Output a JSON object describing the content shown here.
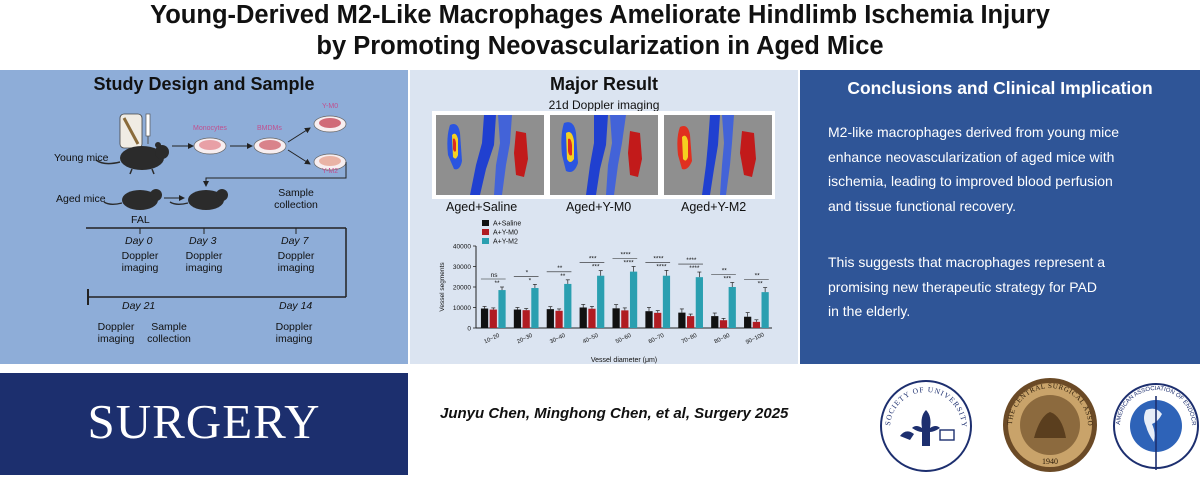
{
  "title": {
    "line1": "Young-Derived M2-Like Macrophages Ameliorate Hindlimb Ischemia Injury",
    "line2": "by Promoting Neovascularization in Aged Mice"
  },
  "design": {
    "heading": "Study Design and Sample",
    "young_mice": "Young mice",
    "monocytes": "Monocytes",
    "bmdms": "BMDMs",
    "y_m0": "Y-M0",
    "y_m2": "Y-M2",
    "aged_mice": "Aged mice",
    "fal": "FAL",
    "sample_collection_top": [
      "Sample",
      "collection"
    ],
    "day0": "Day 0",
    "day3": "Day 3",
    "day7": "Day 7",
    "day14": "Day 14",
    "day21": "Day 21",
    "doppler_imaging": [
      "Doppler",
      "imaging"
    ],
    "sample_collection": [
      "Sample",
      "collection"
    ]
  },
  "result": {
    "heading": "Major Result",
    "doppler_title": "21d Doppler imaging",
    "group_labels": [
      "Aged+Saline",
      "Aged+Y-M0",
      "Aged+Y-M2"
    ]
  },
  "chart_data": {
    "type": "bar",
    "ylabel": "Vessel segments",
    "xlabel": "Vessel diameter (μm)",
    "ylim": [
      0,
      40000
    ],
    "yticks": [
      0,
      10000,
      20000,
      30000,
      40000
    ],
    "categories": [
      "10~20",
      "20~30",
      "30~40",
      "40~50",
      "50~60",
      "60~70",
      "70~80",
      "80~90",
      "90~100"
    ],
    "series": [
      {
        "name": "A+Saline",
        "color": "#111111",
        "values": [
          9500,
          9000,
          9200,
          10000,
          9600,
          8200,
          7500,
          5800,
          5500
        ]
      },
      {
        "name": "A+Y-M0",
        "color": "#b01c22",
        "values": [
          9000,
          8700,
          8400,
          9400,
          8600,
          7400,
          5800,
          3800,
          3000
        ]
      },
      {
        "name": "A+Y-M2",
        "color": "#2a9fb0",
        "values": [
          18500,
          19500,
          21500,
          25500,
          27500,
          25500,
          24800,
          20000,
          17500
        ]
      }
    ],
    "errors": [
      [
        1000,
        1000,
        1200,
        1500,
        1800,
        1800,
        1800,
        1500,
        2000
      ],
      [
        800,
        800,
        900,
        1100,
        1200,
        1100,
        1000,
        900,
        1000
      ],
      [
        1500,
        1800,
        2000,
        2500,
        2500,
        2600,
        2500,
        2200,
        2200
      ]
    ],
    "significance_top": [
      "ns",
      "*",
      "**",
      "***",
      "****",
      "****",
      "****",
      "**",
      "**"
    ],
    "significance_bottom": [
      "**",
      "*",
      "**",
      "***",
      "****",
      "****",
      "****",
      "***",
      "**"
    ],
    "legend_position": "top-left"
  },
  "conclusion": {
    "heading": "Conclusions and Clinical Implication",
    "paragraph1": [
      "M2-like macrophages derived from young mice",
      "enhance neovascularization of aged mice with",
      "ischemia, leading to improved blood perfusion",
      "and tissue functional recovery."
    ],
    "paragraph2": [
      "This suggests that macrophages represent a",
      "promising new therapeutic strategy for PAD",
      "in the elderly."
    ]
  },
  "footer": {
    "journal": "SURGERY",
    "authors": "Junyu Chen, Minghong Chen, et al, Surgery 2025",
    "logo1_text": "SOCIETY OF UNIVERSITY SURGEONS",
    "logo2_text": "THE CENTRAL SURGICAL ASSOCIATION",
    "logo2_year": "1940",
    "logo3_text": "AMERICAN ASSOCIATION OF ENDOCRINE SURGEONS"
  },
  "colors": {
    "design_panel": "#8eadd8",
    "result_panel": "#dbe4f1",
    "conclusion_panel": "#2f5597",
    "journal_band": "#1c2f6e"
  }
}
